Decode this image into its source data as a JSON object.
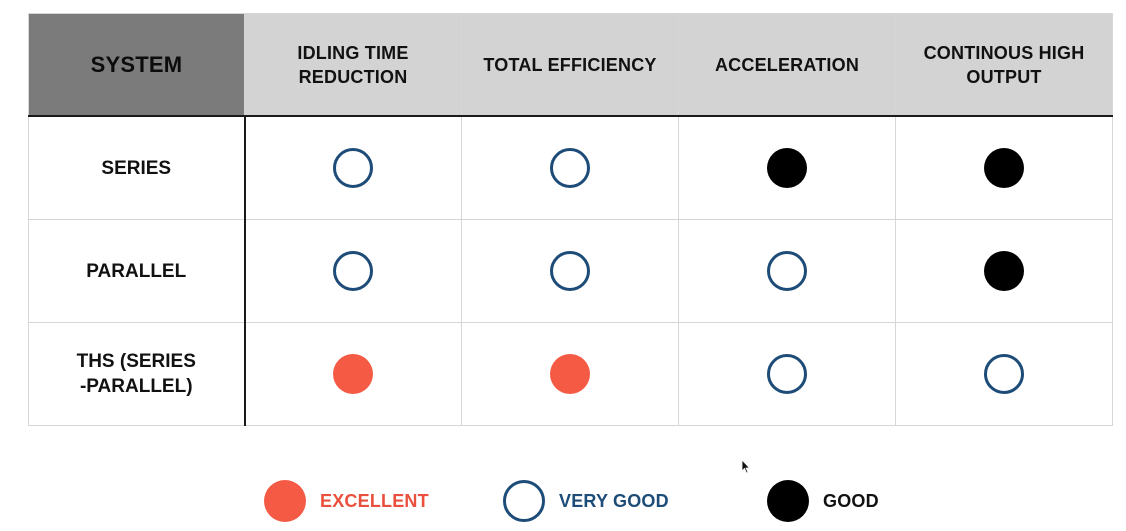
{
  "table": {
    "header": {
      "system": "SYSTEM",
      "columns": [
        {
          "line1": "IDLING TIME",
          "line2": "REDUCTION"
        },
        {
          "line1": "TOTAL EFFICIENCY",
          "line2": ""
        },
        {
          "line1": "ACCELERATION",
          "line2": ""
        },
        {
          "line1": "CONTINOUS HIGH",
          "line2": "OUTPUT"
        }
      ]
    },
    "rows": [
      {
        "line1": "SERIES",
        "line2": "",
        "ratings": [
          "very-good",
          "very-good",
          "good",
          "good"
        ]
      },
      {
        "line1": "PARALLEL",
        "line2": "",
        "ratings": [
          "very-good",
          "very-good",
          "very-good",
          "good"
        ]
      },
      {
        "line1": "THS (SERIES",
        "line2": "-PARALLEL)",
        "ratings": [
          "excellent",
          "excellent",
          "very-good",
          "very-good"
        ]
      }
    ]
  },
  "legend": {
    "excellent": "EXCELLENT",
    "very_good": "VERY GOOD",
    "good": "GOOD"
  },
  "colors": {
    "excellent": "#f55a45",
    "very_good": "#1d4c78",
    "good": "#000000",
    "header_bg": "#d3d3d3",
    "system_header_bg": "#7b7b7b"
  },
  "icons": {
    "excellent": "filled-red-circle-icon",
    "very_good": "hollow-blue-circle-icon",
    "good": "filled-black-circle-icon",
    "cursor": "mouse-pointer-icon"
  }
}
